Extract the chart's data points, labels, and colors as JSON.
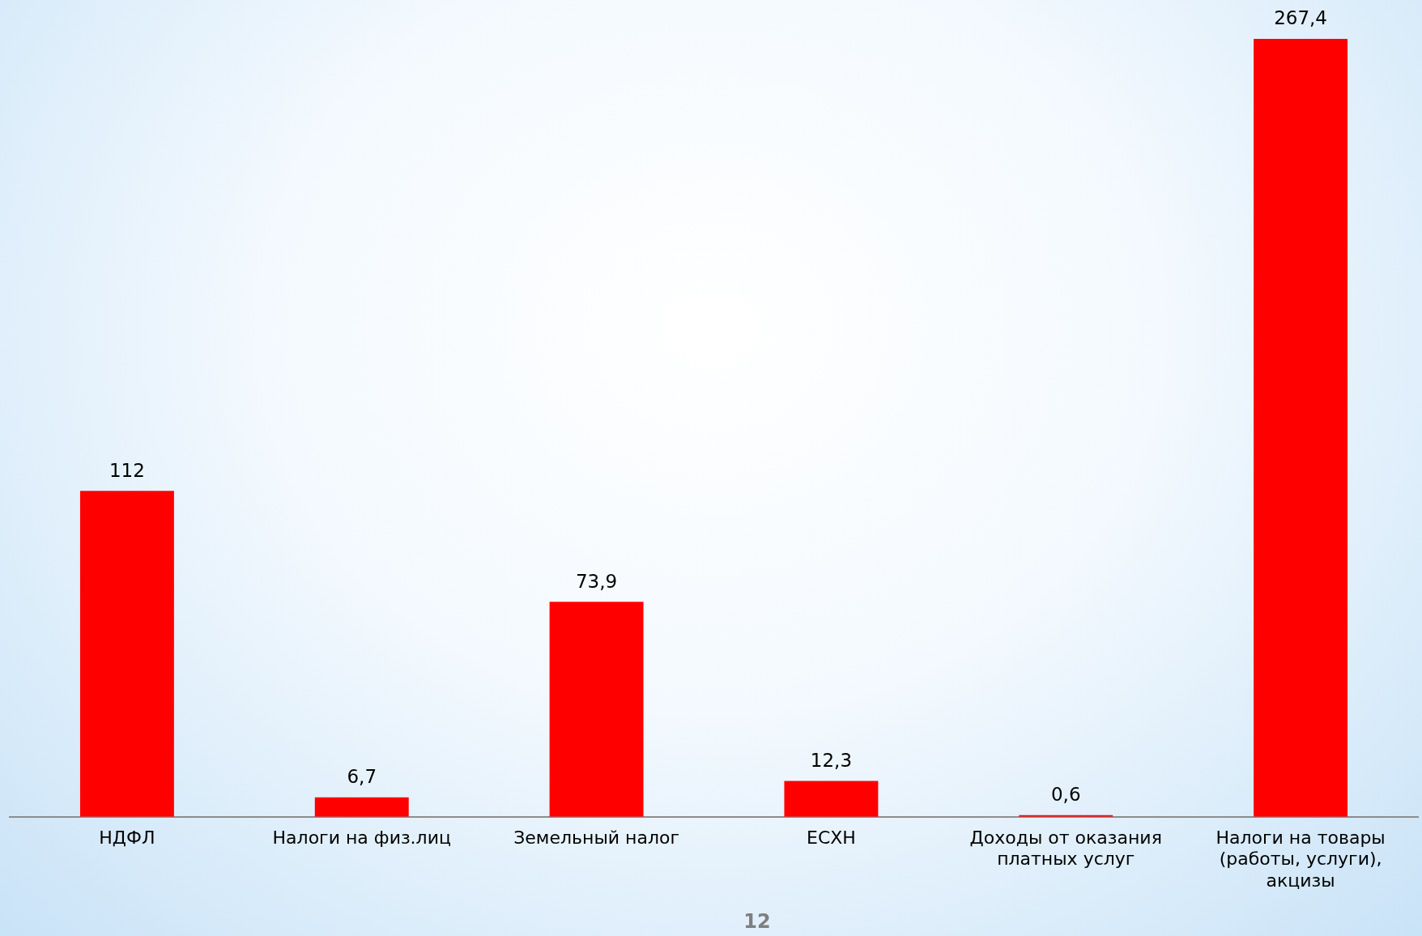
{
  "chart_data": {
    "type": "bar",
    "categories": [
      "НДФЛ",
      "Налоги на физ.лиц",
      "Земельный налог",
      "ЕСХН",
      "Доходы от оказания платных услуг",
      "Налоги на товары (работы, услуги), акцизы"
    ],
    "values": [
      112,
      6.7,
      73.9,
      12.3,
      0.6,
      267.4
    ],
    "value_labels": [
      "112",
      "6,7",
      "73,9",
      "12,3",
      "0,6",
      "267,4"
    ],
    "color": "#ff0000",
    "grid": false,
    "legend": false,
    "annotations": [
      "12"
    ]
  }
}
